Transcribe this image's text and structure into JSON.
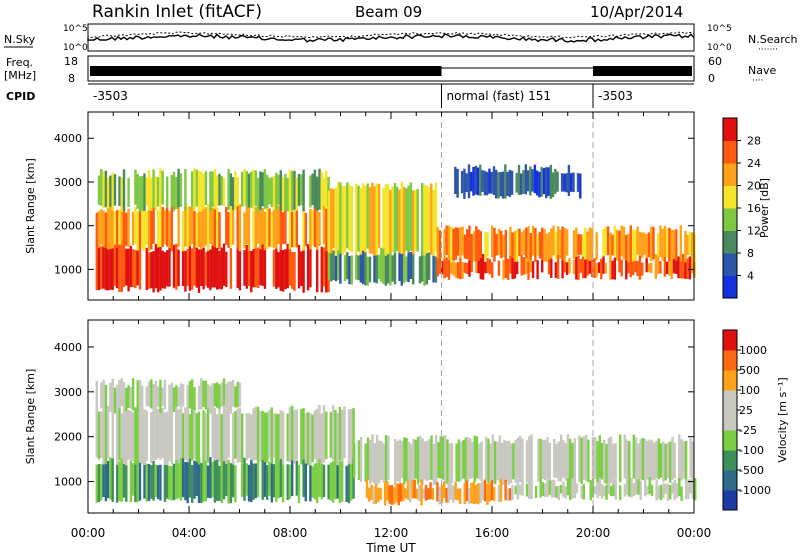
{
  "header": {
    "station": "Rankin Inlet (fitACF)",
    "beam": "Beam 09",
    "date": "10/Apr/2014"
  },
  "top_panels": {
    "nsky_label": "N.Sky",
    "nsearch_label": "N.Search",
    "freq_label": "Freq.",
    "freq_unit": "[MHz]",
    "nave_label": "Nave",
    "cpid_label": "CPID",
    "noise_tick_hi": "10^5",
    "noise_tick_lo": "10^0",
    "freq_tick_hi": "18",
    "freq_tick_lo": "8",
    "nave_tick_hi": "60",
    "nave_tick_lo": "0",
    "dotted_marker": "·······",
    "short_dotted_marker": "····"
  },
  "cpid_segments": [
    {
      "start_hour": 0,
      "end_hour": 14,
      "label": "-3503"
    },
    {
      "start_hour": 14,
      "end_hour": 20,
      "label": "normal (fast) 151"
    },
    {
      "start_hour": 20,
      "end_hour": 24,
      "label": "-3503"
    }
  ],
  "chart_data": [
    {
      "type": "heatmap",
      "title": "",
      "xlabel": "Time UT",
      "ylabel": "Slant Range [km]",
      "xlim": [
        0,
        24
      ],
      "ylim": [
        300,
        4600
      ],
      "x_ticks": [
        "00:00",
        "04:00",
        "08:00",
        "12:00",
        "16:00",
        "20:00",
        "00:00"
      ],
      "y_ticks": [
        1000,
        2000,
        3000,
        4000
      ],
      "colorbar": {
        "label": "Power [dB]",
        "ticks": [
          "4",
          "8",
          "12",
          "16",
          "20",
          "24",
          "28"
        ],
        "colors": [
          "#1530e0",
          "#2d55a8",
          "#4a8a5e",
          "#7fc843",
          "#f2e52a",
          "#ffa21a",
          "#ff5a10",
          "#e01010"
        ]
      },
      "mode_change_hours": [
        14,
        20
      ],
      "bands": [
        {
          "start_hour": 0.3,
          "end_hour": 9.5,
          "low_km": 550,
          "high_km": 1500,
          "level": 7
        },
        {
          "start_hour": 0.3,
          "end_hour": 9.5,
          "low_km": 1500,
          "high_km": 2400,
          "level": 5
        },
        {
          "start_hour": 0.3,
          "end_hour": 9.5,
          "low_km": 2400,
          "high_km": 3200,
          "level": 3
        },
        {
          "start_hour": 9.5,
          "end_hour": 13.8,
          "low_km": 700,
          "high_km": 1400,
          "level": 2
        },
        {
          "start_hour": 9.5,
          "end_hour": 13.8,
          "low_km": 1400,
          "high_km": 2900,
          "level": 4
        },
        {
          "start_hour": 13.8,
          "end_hour": 24,
          "low_km": 850,
          "high_km": 1250,
          "level": 6
        },
        {
          "start_hour": 13.8,
          "end_hour": 24,
          "low_km": 1250,
          "high_km": 1900,
          "level": 5
        },
        {
          "start_hour": 14.5,
          "end_hour": 19.5,
          "low_km": 2700,
          "high_km": 3300,
          "level": 1
        }
      ]
    },
    {
      "type": "heatmap",
      "title": "",
      "xlabel": "Time UT",
      "ylabel": "Slant Range [km]",
      "xlim": [
        0,
        24
      ],
      "ylim": [
        300,
        4600
      ],
      "x_ticks": [
        "00:00",
        "04:00",
        "08:00",
        "12:00",
        "16:00",
        "20:00",
        "00:00"
      ],
      "y_ticks": [
        1000,
        2000,
        3000,
        4000
      ],
      "colorbar": {
        "label": "Velocity [m s⁻¹]",
        "ticks": [
          "1000",
          "500",
          "100",
          "25",
          "-25",
          "-100",
          "-500",
          "-1000"
        ],
        "colors": [
          "#1e3ca8",
          "#2f6a8a",
          "#3f8f5a",
          "#7ccf45",
          "#c8c8c0",
          "#c8c8c0",
          "#ffa21a",
          "#ff6a10",
          "#e01010"
        ]
      },
      "mode_change_hours": [
        14,
        20
      ],
      "bands": [
        {
          "start_hour": 0.3,
          "end_hour": 10.5,
          "low_km": 600,
          "high_km": 1450,
          "level": 2
        },
        {
          "start_hour": 0.3,
          "end_hour": 10.5,
          "low_km": 1450,
          "high_km": 2600,
          "level": 4
        },
        {
          "start_hour": 0.3,
          "end_hour": 6.0,
          "low_km": 2600,
          "high_km": 3200,
          "level": 4
        },
        {
          "start_hour": 10.5,
          "end_hour": 24,
          "low_km": 1000,
          "high_km": 1950,
          "level": 4
        },
        {
          "start_hour": 11.0,
          "end_hour": 16.8,
          "low_km": 550,
          "high_km": 950,
          "level": 6
        },
        {
          "start_hour": 16.8,
          "end_hour": 24,
          "low_km": 650,
          "high_km": 1000,
          "level": 4
        }
      ]
    }
  ]
}
